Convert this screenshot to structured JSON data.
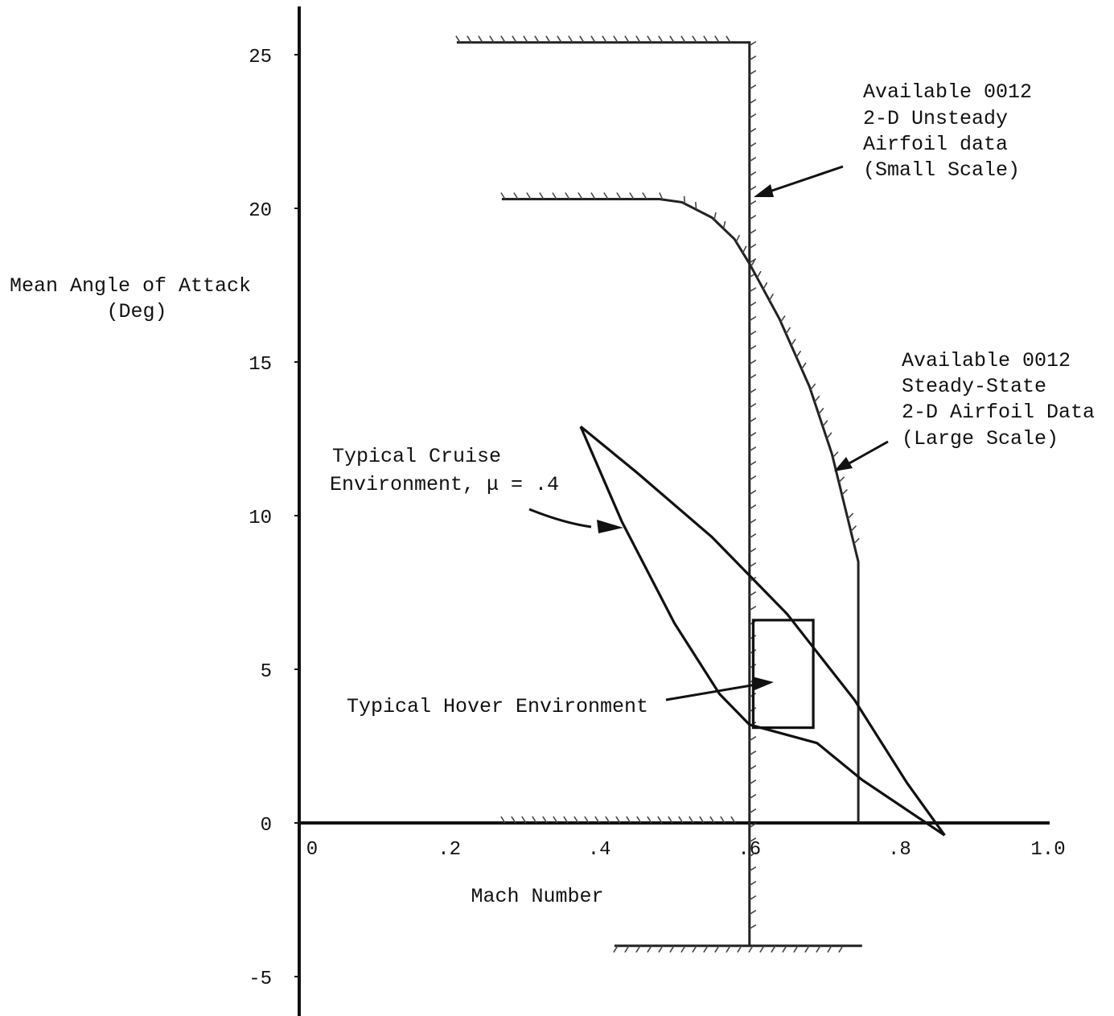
{
  "chart_data": {
    "type": "line",
    "xlabel": "Mach Number",
    "ylabel_lines": [
      "Mean Angle of Attack",
      "(Deg)"
    ],
    "xlim": [
      0,
      1.0
    ],
    "ylim": [
      -5,
      25
    ],
    "x_ticks": [
      {
        "value": 0,
        "label": "0"
      },
      {
        "value": 0.2,
        "label": ".2"
      },
      {
        "value": 0.4,
        "label": ".4"
      },
      {
        "value": 0.6,
        "label": ".6"
      },
      {
        "value": 0.8,
        "label": ".8"
      },
      {
        "value": 1.0,
        "label": "1.0"
      }
    ],
    "y_ticks": [
      {
        "value": 25,
        "label": "25"
      },
      {
        "value": 20,
        "label": "20"
      },
      {
        "value": 15,
        "label": "15"
      },
      {
        "value": 10,
        "label": "10"
      },
      {
        "value": 5,
        "label": "5"
      },
      {
        "value": 0,
        "label": "0"
      },
      {
        "value": -5,
        "label": "-5"
      }
    ],
    "grid": false,
    "series": [
      {
        "key": "unsteady",
        "x": [
          0.21,
          0.6,
          0.6,
          0.6,
          0.6,
          0.75,
          0.75,
          0.42
        ],
        "y": [
          25.4,
          25.4,
          0,
          -2,
          -4,
          -4,
          -4,
          -4
        ],
        "path": [
          [
            0.21,
            25.4
          ],
          [
            0.6,
            25.4
          ],
          [
            0.6,
            -4
          ],
          [
            0.75,
            -4
          ],
          [
            0.42,
            -4
          ]
        ]
      },
      {
        "key": "steady",
        "path": [
          [
            0.27,
            20.3
          ],
          [
            0.48,
            20.3
          ],
          [
            0.51,
            20.2
          ],
          [
            0.55,
            19.7
          ],
          [
            0.58,
            19.0
          ],
          [
            0.6,
            18.2
          ],
          [
            0.64,
            16.4
          ],
          [
            0.68,
            14.2
          ],
          [
            0.71,
            12.0
          ],
          [
            0.73,
            10.0
          ],
          [
            0.745,
            8.5
          ],
          [
            0.745,
            0
          ]
        ],
        "hatch_on": "inner"
      },
      {
        "key": "cruise",
        "upper": [
          [
            0.375,
            12.9
          ],
          [
            0.45,
            11.4
          ],
          [
            0.55,
            9.3
          ],
          [
            0.65,
            6.8
          ],
          [
            0.74,
            4.0
          ],
          [
            0.81,
            1.3
          ],
          [
            0.86,
            -0.4
          ]
        ],
        "lower": [
          [
            0.375,
            12.9
          ],
          [
            0.43,
            9.8
          ],
          [
            0.5,
            6.5
          ],
          [
            0.56,
            4.2
          ],
          [
            0.6,
            3.2
          ],
          [
            0.69,
            2.6
          ],
          [
            0.75,
            1.4
          ],
          [
            0.86,
            -0.4
          ]
        ]
      },
      {
        "key": "hover",
        "rect": {
          "x0": 0.605,
          "x1": 0.685,
          "y0": 3.1,
          "y1": 6.6
        }
      },
      {
        "key": "zero_hatch",
        "path": [
          [
            0.27,
            0
          ],
          [
            0.6,
            0
          ]
        ]
      }
    ],
    "annotations": [
      {
        "key": "unsteady_label",
        "lines": [
          "Available 0012",
          "2-D Unsteady",
          "Airfoil data",
          "(Small Scale)"
        ]
      },
      {
        "key": "steady_label",
        "lines": [
          "Available 0012",
          "Steady-State",
          "2-D Airfoil Data",
          "(Large Scale)"
        ]
      },
      {
        "key": "cruise_label",
        "lines": [
          "Typical Cruise",
          "Environment, μ = .4"
        ]
      },
      {
        "key": "hover_label",
        "lines": [
          "Typical Hover Environment"
        ]
      }
    ]
  }
}
